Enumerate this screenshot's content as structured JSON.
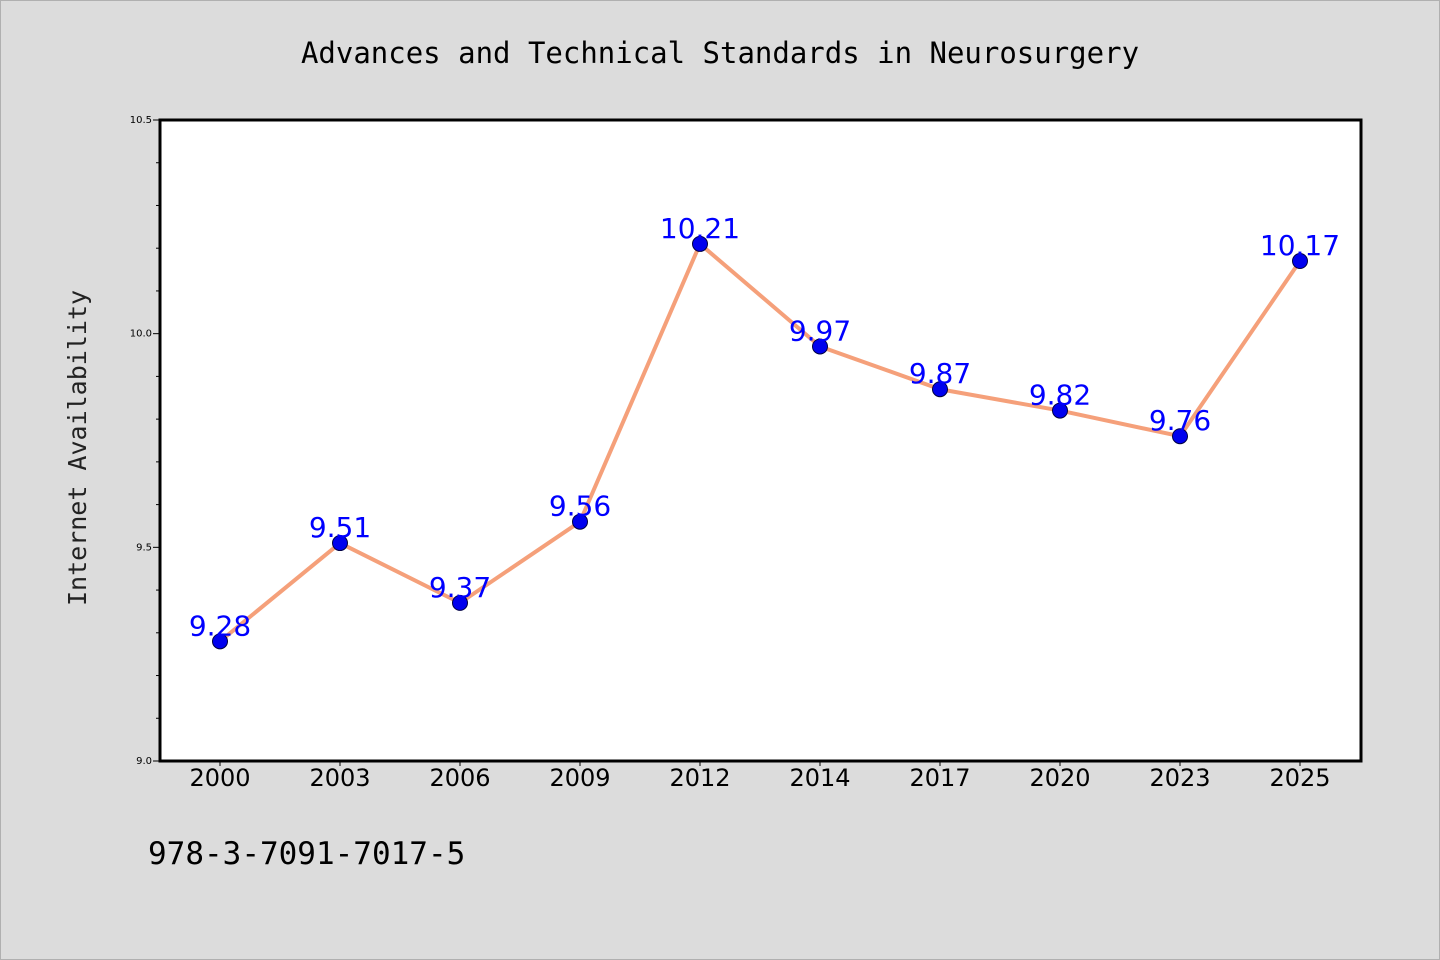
{
  "chart_data": {
    "type": "line",
    "title": "Advances and Technical Standards in Neurosurgery",
    "xlabel": "",
    "ylabel": "Internet Availability",
    "categories": [
      "2000",
      "2003",
      "2006",
      "2009",
      "2012",
      "2014",
      "2017",
      "2020",
      "2023",
      "2025"
    ],
    "series": [
      {
        "values": [
          9.28,
          9.51,
          9.37,
          9.56,
          10.21,
          9.97,
          9.87,
          9.82,
          9.76,
          10.17
        ],
        "labels": [
          "9.28",
          "9.51",
          "9.37",
          "9.56",
          "10.21",
          "9.97",
          "9.87",
          "9.82",
          "9.76",
          "10.17"
        ]
      }
    ],
    "ylim": [
      9.0,
      10.5
    ],
    "yticks": [
      "9.0",
      "9.5",
      "10.0",
      "10.5"
    ],
    "grid": false,
    "colors": {
      "line": "#f5a07a",
      "marker": "#0000ee",
      "label": "#0000ff",
      "plot_bg": "#ffffff",
      "page_bg": "#dcdcdc"
    }
  },
  "footer": {
    "isbn": "978-3-7091-7017-5"
  }
}
